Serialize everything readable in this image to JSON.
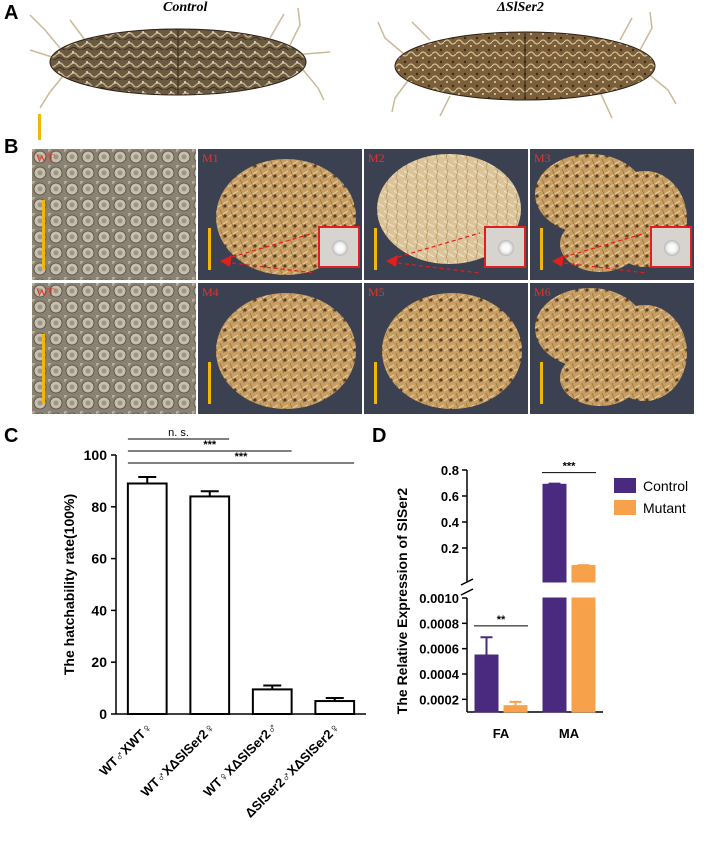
{
  "panel_a": {
    "letter": "A",
    "titles": [
      "Control",
      "ΔSlSer2"
    ]
  },
  "panel_b": {
    "letter": "B",
    "tiles": [
      {
        "label": "WT",
        "tone": "eggs"
      },
      {
        "label": "M1",
        "tone": "mass",
        "inset": true
      },
      {
        "label": "M2",
        "tone": "light",
        "inset": true
      },
      {
        "label": "M3",
        "tone": "patchy",
        "inset": true
      },
      {
        "label": "WT",
        "tone": "eggs"
      },
      {
        "label": "M4",
        "tone": "mass"
      },
      {
        "label": "M5",
        "tone": "mass"
      },
      {
        "label": "M6",
        "tone": "patchy"
      }
    ],
    "colors": {
      "label": "#e8312a",
      "scalebar": "#f2b705",
      "inset": "#e01f1f"
    }
  },
  "panel_c": {
    "letter": "C",
    "chart_data": {
      "type": "bar",
      "ylabel": "The hatchability rate(100%)",
      "ylim": [
        0,
        100
      ],
      "yticks": [
        "0",
        "20",
        "40",
        "60",
        "80",
        "100"
      ],
      "categories": [
        "WT♂XWT♀",
        "WT♂XΔSlSer2♀",
        "WT♀XΔSlSer2♂",
        "ΔSlSer2♂XΔSlSer2♀"
      ],
      "values": [
        89,
        84,
        9.5,
        5
      ],
      "errors": [
        2.5,
        2,
        1.5,
        1.2
      ],
      "significance": [
        {
          "from": 0,
          "to": 1,
          "label": "n. s."
        },
        {
          "from": 0,
          "to": 2,
          "label": "***"
        },
        {
          "from": 0,
          "to": 3,
          "label": "***"
        }
      ],
      "bar_fill": "#ffffff",
      "bar_stroke": "#000000"
    }
  },
  "panel_d": {
    "letter": "D",
    "chart_data": {
      "type": "bar",
      "ylabel": "The Relative Expression of SlSer2",
      "categories": [
        "FA",
        "MA"
      ],
      "series": [
        {
          "name": "Control",
          "color": "#4a2a7e",
          "values": [
            0.00055,
            0.69
          ],
          "errors": [
            0.00014,
            0.005
          ]
        },
        {
          "name": "Mutant",
          "color": "#f7a24b",
          "values": [
            0.00015,
            0.065
          ],
          "errors": [
            3e-05,
            0.003
          ]
        }
      ],
      "broken_axis": true,
      "lower_range": [
        0.0001,
        0.001
      ],
      "upper_range": [
        0.0,
        0.8
      ],
      "lower_ticks": [
        "0.0002",
        "0.0004",
        "0.0006",
        "0.0008",
        "0.0010"
      ],
      "upper_ticks": [
        "0.2",
        "0.4",
        "0.6",
        "0.8"
      ],
      "significance": [
        {
          "category": 0,
          "label": "**"
        },
        {
          "category": 1,
          "label": "***"
        }
      ],
      "legend_position": "top-right"
    }
  }
}
